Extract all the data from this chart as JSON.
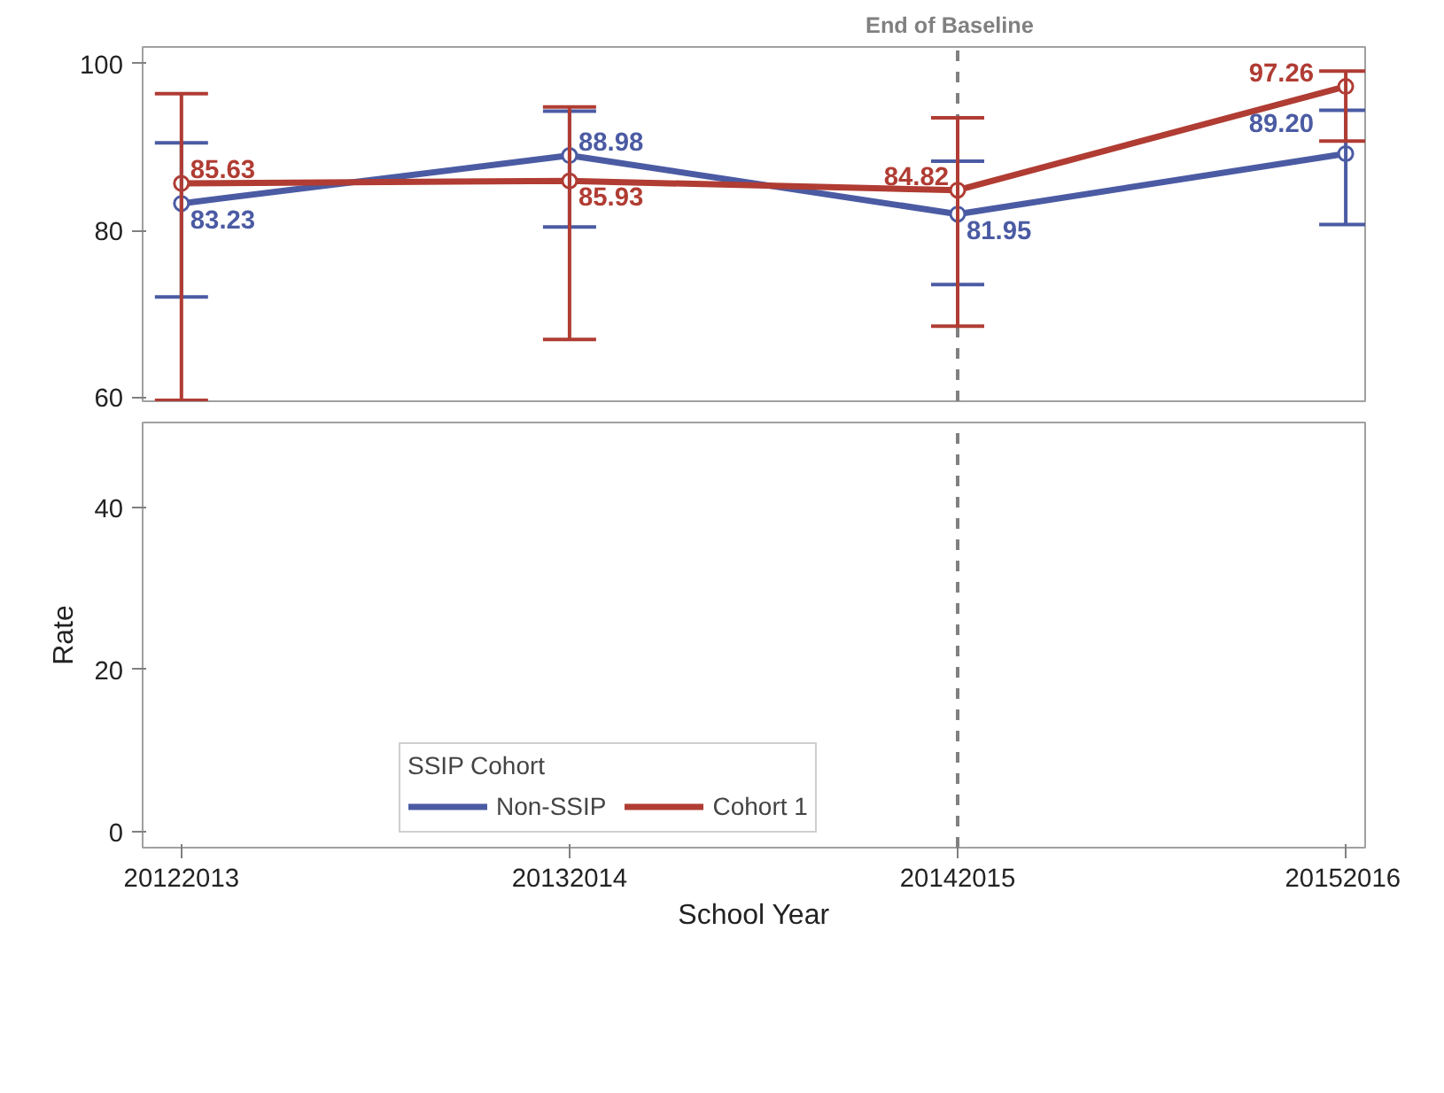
{
  "chart_data": [
    {
      "type": "line",
      "categories": [
        "20122013",
        "20132014",
        "20142015",
        "20152016"
      ],
      "ylim": [
        59.5,
        102
      ],
      "yticks": [
        60,
        80,
        100
      ],
      "tick_labels": "y",
      "grid": false,
      "marker": "circle",
      "line_style": "solid",
      "ref_lines": [
        {
          "axis": "x",
          "value": "20142015",
          "label": "End of Baseline",
          "color": "#808080",
          "line_style": "dashed"
        }
      ],
      "series": [
        {
          "color": "#4b5ba3",
          "values": [
            83.23,
            88.98,
            81.95,
            89.2
          ],
          "value_labels": [
            "83.23",
            "88.98",
            "81.95",
            "89.20"
          ],
          "errors": [
            [
              72.0,
              90.5
            ],
            [
              80.4,
              94.3
            ],
            [
              73.5,
              88.3
            ],
            [
              80.7,
              94.4
            ]
          ]
        },
        {
          "color": "#b03c33",
          "values": [
            85.63,
            85.93,
            84.82,
            97.26
          ],
          "value_labels": [
            "85.63",
            "85.93",
            "84.82",
            "97.26"
          ],
          "errors": [
            [
              59.6,
              96.4
            ],
            [
              66.9,
              94.8
            ],
            [
              68.5,
              93.5
            ],
            [
              90.7,
              99.1
            ]
          ]
        }
      ]
    },
    {
      "type": "line",
      "categories": [
        "20122013",
        "20132014",
        "20142015",
        "20152016"
      ],
      "ylim": [
        -2,
        50.5
      ],
      "yticks": [
        0,
        20,
        40
      ],
      "xlabel": "School Year",
      "ylabel": "Rate",
      "grid": false,
      "legend": "bottom",
      "legend_title": "SSIP Cohort",
      "line_style": "solid",
      "ref_lines": [
        {
          "axis": "x",
          "value": "20142015",
          "color": "#808080",
          "line_style": "dashed"
        }
      ],
      "series": [
        {
          "name": "Non-SSIP",
          "color": "#4b5ba3",
          "values": [
            null,
            null,
            null,
            null
          ]
        },
        {
          "name": "Cohort 1",
          "color": "#b03c33",
          "values": [
            null,
            null,
            null,
            null
          ]
        }
      ]
    }
  ]
}
